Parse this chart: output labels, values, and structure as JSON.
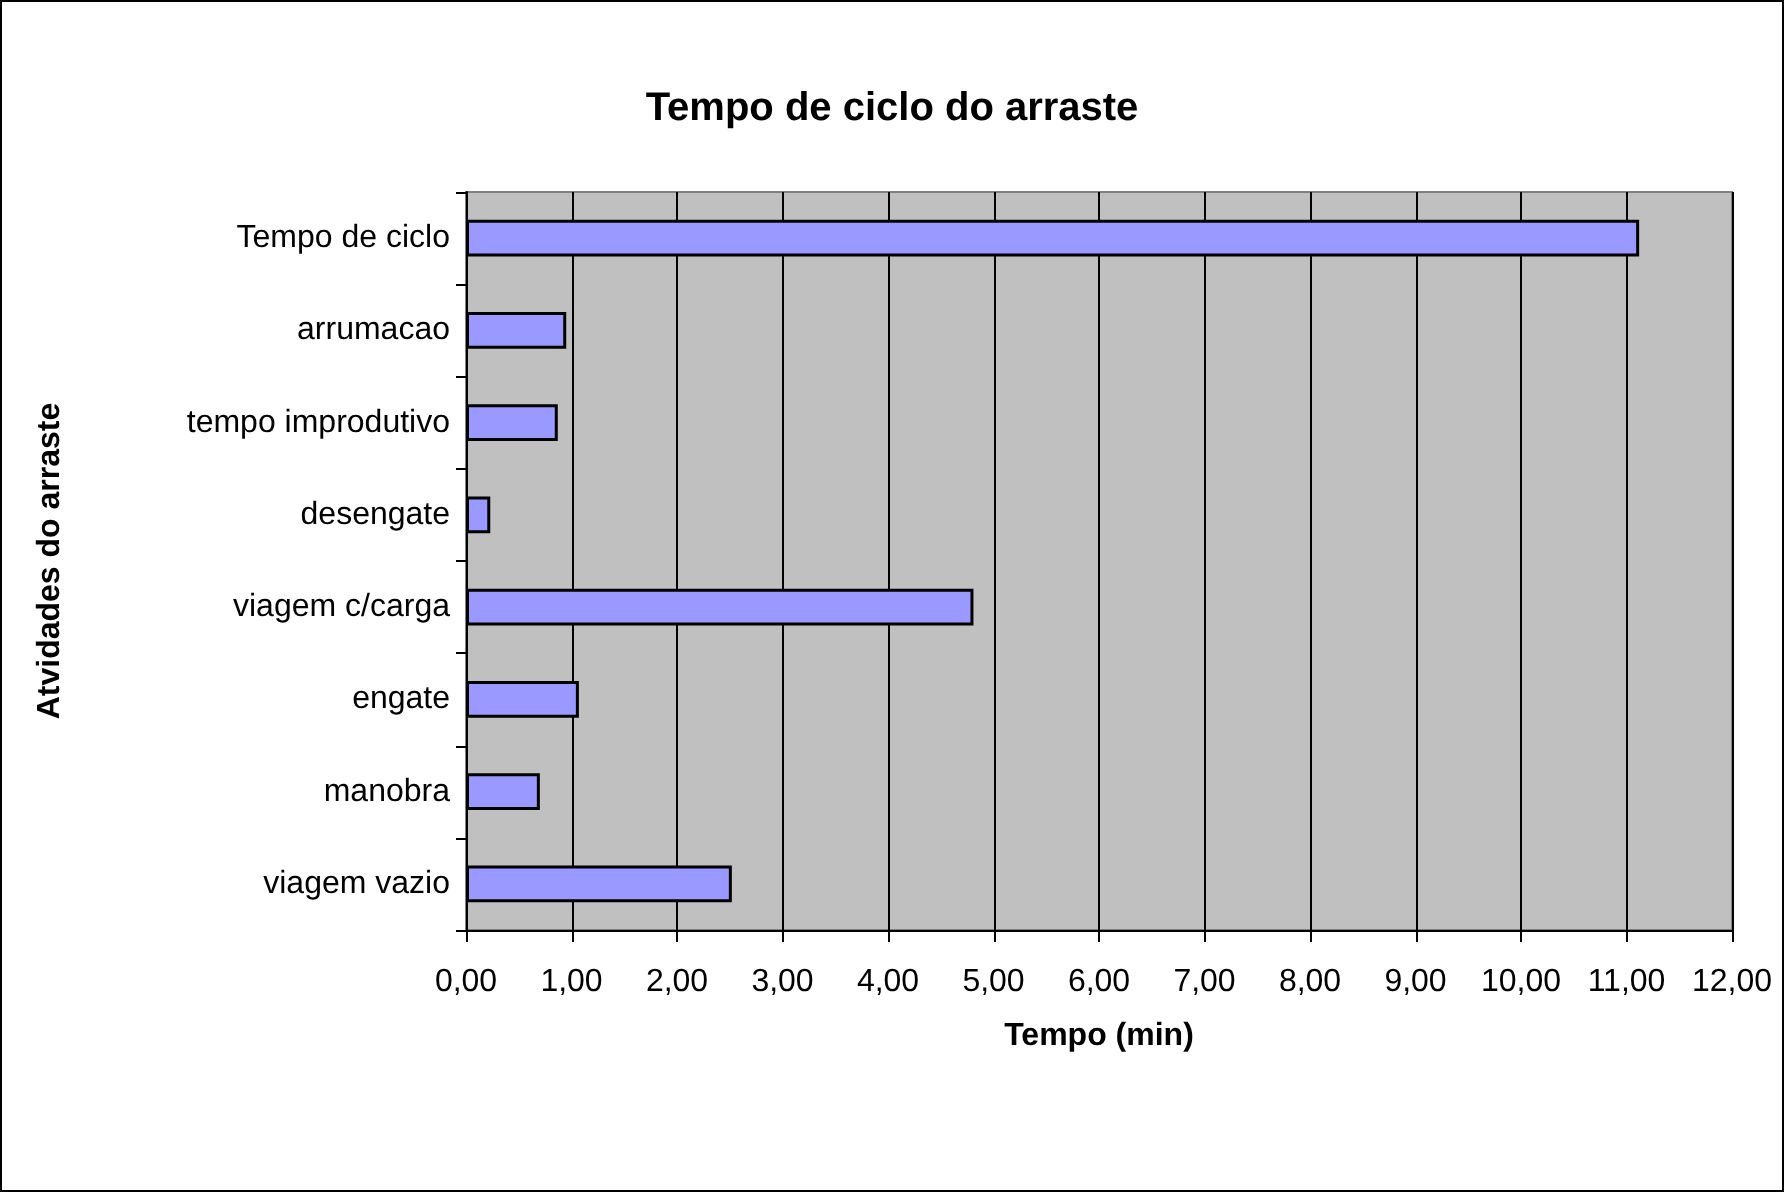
{
  "chart_data": {
    "type": "bar",
    "orientation": "horizontal",
    "title": "Tempo de ciclo do arraste",
    "xlabel": "Tempo (min)",
    "ylabel": "Atvidades do arraste",
    "categories": [
      "Tempo de ciclo",
      "arrumacao",
      "tempo improdutivo",
      "desengate",
      "viagem c/carga",
      "engate",
      "manobra",
      "viagem vazio"
    ],
    "values": [
      11.12,
      0.95,
      0.87,
      0.23,
      4.81,
      1.07,
      0.7,
      2.52
    ],
    "color": "#9999ff",
    "xlim": [
      0,
      12
    ],
    "xticks": [
      {
        "value": 0,
        "label": "0,00"
      },
      {
        "value": 1,
        "label": "1,00"
      },
      {
        "value": 2,
        "label": "2,00"
      },
      {
        "value": 3,
        "label": "3,00"
      },
      {
        "value": 4,
        "label": "4,00"
      },
      {
        "value": 5,
        "label": "5,00"
      },
      {
        "value": 6,
        "label": "6,00"
      },
      {
        "value": 7,
        "label": "7,00"
      },
      {
        "value": 8,
        "label": "8,00"
      },
      {
        "value": 9,
        "label": "9,00"
      },
      {
        "value": 10,
        "label": "10,00"
      },
      {
        "value": 11,
        "label": "11,00"
      },
      {
        "value": 12,
        "label": "12,00"
      }
    ],
    "grid": "x"
  }
}
